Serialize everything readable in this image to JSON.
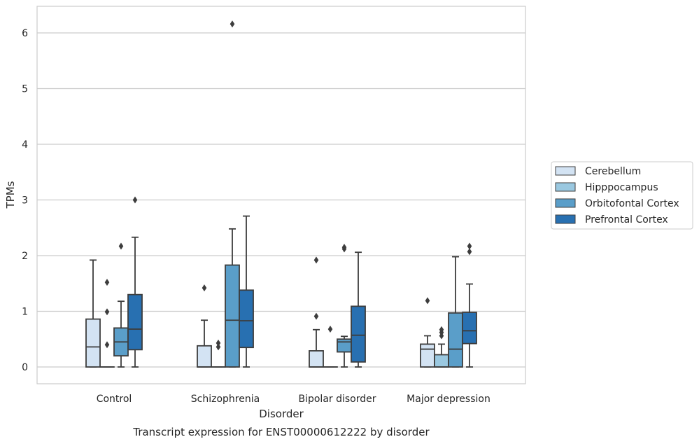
{
  "chart_data": {
    "type": "box",
    "title": "Transcript expression for ENST00000612222 by disorder",
    "xlabel": "Disorder",
    "ylabel": "TPMs",
    "ylim": [
      -0.3,
      6.5
    ],
    "yticks": [
      0,
      1,
      2,
      3,
      4,
      5,
      6
    ],
    "grid": true,
    "legend_position": "right",
    "categories": [
      "Control",
      "Schizophrenia",
      "Bipolar disorder",
      "Major depression"
    ],
    "series": [
      {
        "name": "Cerebellum",
        "color": "#d3e3f3",
        "boxes": [
          {
            "whisker_low": 0,
            "q1": 0,
            "median": 0.36,
            "q3": 0.86,
            "whisker_high": 1.92,
            "outliers": []
          },
          {
            "whisker_low": 0,
            "q1": 0,
            "median": 0,
            "q3": 0.38,
            "whisker_high": 0.84,
            "outliers": [
              1.42
            ]
          },
          {
            "whisker_low": 0,
            "q1": 0,
            "median": 0,
            "q3": 0.29,
            "whisker_high": 0.67,
            "outliers": [
              0.91,
              1.92
            ]
          },
          {
            "whisker_low": 0,
            "q1": 0,
            "median": 0.32,
            "q3": 0.41,
            "whisker_high": 0.56,
            "outliers": [
              1.19
            ]
          }
        ]
      },
      {
        "name": "Hipppocampus",
        "color": "#9ac8e0",
        "boxes": [
          {
            "whisker_low": 0,
            "q1": 0,
            "median": 0,
            "q3": 0,
            "whisker_high": 0,
            "outliers": [
              0.4,
              0.99,
              1.52
            ]
          },
          {
            "whisker_low": 0,
            "q1": 0,
            "median": 0,
            "q3": 0,
            "whisker_high": 0,
            "outliers": [
              0.36,
              0.43
            ]
          },
          {
            "whisker_low": 0,
            "q1": 0,
            "median": 0,
            "q3": 0,
            "whisker_high": 0,
            "outliers": [
              0.68
            ]
          },
          {
            "whisker_low": 0,
            "q1": 0,
            "median": 0,
            "q3": 0.22,
            "whisker_high": 0.41,
            "outliers": [
              0.56,
              0.62,
              0.67
            ]
          }
        ]
      },
      {
        "name": "Orbitofontal Cortex",
        "color": "#5a9ec9",
        "boxes": [
          {
            "whisker_low": 0,
            "q1": 0.2,
            "median": 0.45,
            "q3": 0.7,
            "whisker_high": 1.18,
            "outliers": [
              2.17
            ]
          },
          {
            "whisker_low": 0,
            "q1": 0,
            "median": 0.84,
            "q3": 1.83,
            "whisker_high": 2.48,
            "outliers": [
              6.16
            ]
          },
          {
            "whisker_low": 0,
            "q1": 0.27,
            "median": 0.45,
            "q3": 0.5,
            "whisker_high": 0.55,
            "outliers": [
              2.12,
              2.15
            ]
          },
          {
            "whisker_low": 0,
            "q1": 0,
            "median": 0.32,
            "q3": 0.97,
            "whisker_high": 1.98,
            "outliers": []
          }
        ]
      },
      {
        "name": "Prefrontal Cortex",
        "color": "#2870b1",
        "boxes": [
          {
            "whisker_low": 0,
            "q1": 0.31,
            "median": 0.68,
            "q3": 1.3,
            "whisker_high": 2.33,
            "outliers": [
              3.0
            ]
          },
          {
            "whisker_low": 0,
            "q1": 0.35,
            "median": 0.83,
            "q3": 1.38,
            "whisker_high": 2.71,
            "outliers": []
          },
          {
            "whisker_low": 0,
            "q1": 0.09,
            "median": 0.57,
            "q3": 1.09,
            "whisker_high": 2.06,
            "outliers": []
          },
          {
            "whisker_low": 0,
            "q1": 0.42,
            "median": 0.65,
            "q3": 0.98,
            "whisker_high": 1.49,
            "outliers": [
              2.07,
              2.17
            ]
          }
        ]
      }
    ]
  }
}
